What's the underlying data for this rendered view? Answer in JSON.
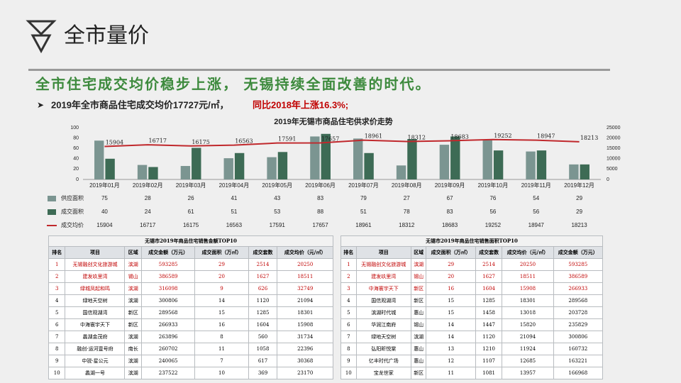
{
  "header": {
    "title": "全市量价"
  },
  "headline": "全市住宅成交均价稳步上涨， 无锡持续全面改善的时代。",
  "bullet": {
    "text": "2019年全市商品住宅成交均价17727元/㎡，",
    "highlight": "同比2018年上涨16.3%;"
  },
  "chart_data": {
    "type": "bar",
    "title": "2019年无锡市商品住宅供求价走势",
    "categories": [
      "2019年01月",
      "2019年02月",
      "2019年03月",
      "2019年04月",
      "2019年05月",
      "2019年06月",
      "2019年07月",
      "2019年08月",
      "2019年09月",
      "2019年10月",
      "2019年11月",
      "2019年12月"
    ],
    "series": [
      {
        "name": "供应面积",
        "color": "#7b9591",
        "values": [
          75,
          28,
          26,
          41,
          43,
          83,
          79,
          27,
          67,
          76,
          54,
          29
        ]
      },
      {
        "name": "成交面积",
        "color": "#3d6b55",
        "values": [
          40,
          24,
          61,
          51,
          53,
          88,
          51,
          78,
          83,
          56,
          56,
          29
        ]
      },
      {
        "name": "成交均价",
        "type": "line",
        "axis": "y2",
        "color": "#c0282c",
        "values": [
          15904,
          16717,
          16175,
          16563,
          17591,
          17657,
          18961,
          18312,
          18683,
          19252,
          18947,
          18213
        ]
      }
    ],
    "ylim": [
      0,
      100
    ],
    "yticks": [
      0,
      20,
      40,
      60,
      80,
      100
    ],
    "y2lim": [
      0,
      25000
    ],
    "y2ticks": [
      0,
      5000,
      10000,
      15000,
      20000,
      25000
    ]
  },
  "tables": [
    {
      "title": "无锡市2019年商品住宅销售金额TOP10",
      "headers": [
        "排名",
        "项目",
        "区域",
        "成交金额（万元）",
        "成交面积（万㎡）",
        "成交套数",
        "成交均价（元/㎡）"
      ],
      "rows": [
        [
          1,
          "无锡融创文化旅游城",
          "滨湖",
          593285,
          29,
          2514,
          20250
        ],
        [
          2,
          "建发玖里湾",
          "锡山",
          386589,
          20,
          1627,
          18511
        ],
        [
          3,
          "绿城凤起和鸣",
          "滨湖",
          316098,
          9,
          626,
          32749
        ],
        [
          4,
          "绿地天空树",
          "滨湖",
          300806,
          14,
          1120,
          21094
        ],
        [
          5,
          "国信观湖湾",
          "新区",
          289568,
          15,
          1285,
          18301
        ],
        [
          6,
          "中海寰宇天下",
          "新区",
          266933,
          16,
          1604,
          15908
        ],
        [
          7,
          "蠡湖金茂府",
          "滨湖",
          263896,
          8,
          560,
          31734
        ],
        [
          8,
          "融创·运河壹号府",
          "南长",
          260702,
          11,
          1058,
          22396
        ],
        [
          9,
          "中锐·星公元",
          "滨湖",
          240065,
          7,
          617,
          30368
        ],
        [
          10,
          "蠡湖一号",
          "滨湖",
          237522,
          10,
          369,
          23170
        ]
      ]
    },
    {
      "title": "无锡市2019年商品住宅销售面积TOP10",
      "headers": [
        "排名",
        "项目",
        "区域",
        "成交面积（万㎡）",
        "成交套数",
        "成交均价（元/㎡）",
        "成交金额（万元）"
      ],
      "rows": [
        [
          1,
          "无锡融创文化旅游城",
          "滨湖",
          29,
          2514,
          20250,
          593285
        ],
        [
          2,
          "建发玖里湾",
          "锡山",
          20,
          1627,
          18511,
          386589
        ],
        [
          3,
          "中海寰宇天下",
          "新区",
          16,
          1604,
          15908,
          266933
        ],
        [
          4,
          "国信观湖湾",
          "新区",
          15,
          1285,
          18301,
          289568
        ],
        [
          5,
          "滨湖时代城",
          "惠山",
          15,
          1458,
          13018,
          203728
        ],
        [
          6,
          "华润江南府",
          "锡山",
          14,
          1447,
          15820,
          235829
        ],
        [
          7,
          "绿地天空树",
          "滨湖",
          14,
          1120,
          21094,
          300806
        ],
        [
          8,
          "弘阳昕悦棠",
          "惠山",
          13,
          1210,
          11924,
          160732
        ],
        [
          9,
          "亿丰时代广场",
          "惠山",
          12,
          1107,
          12685,
          163221
        ],
        [
          10,
          "宝龙世家",
          "新区",
          11,
          1081,
          13957,
          166968
        ]
      ]
    }
  ]
}
